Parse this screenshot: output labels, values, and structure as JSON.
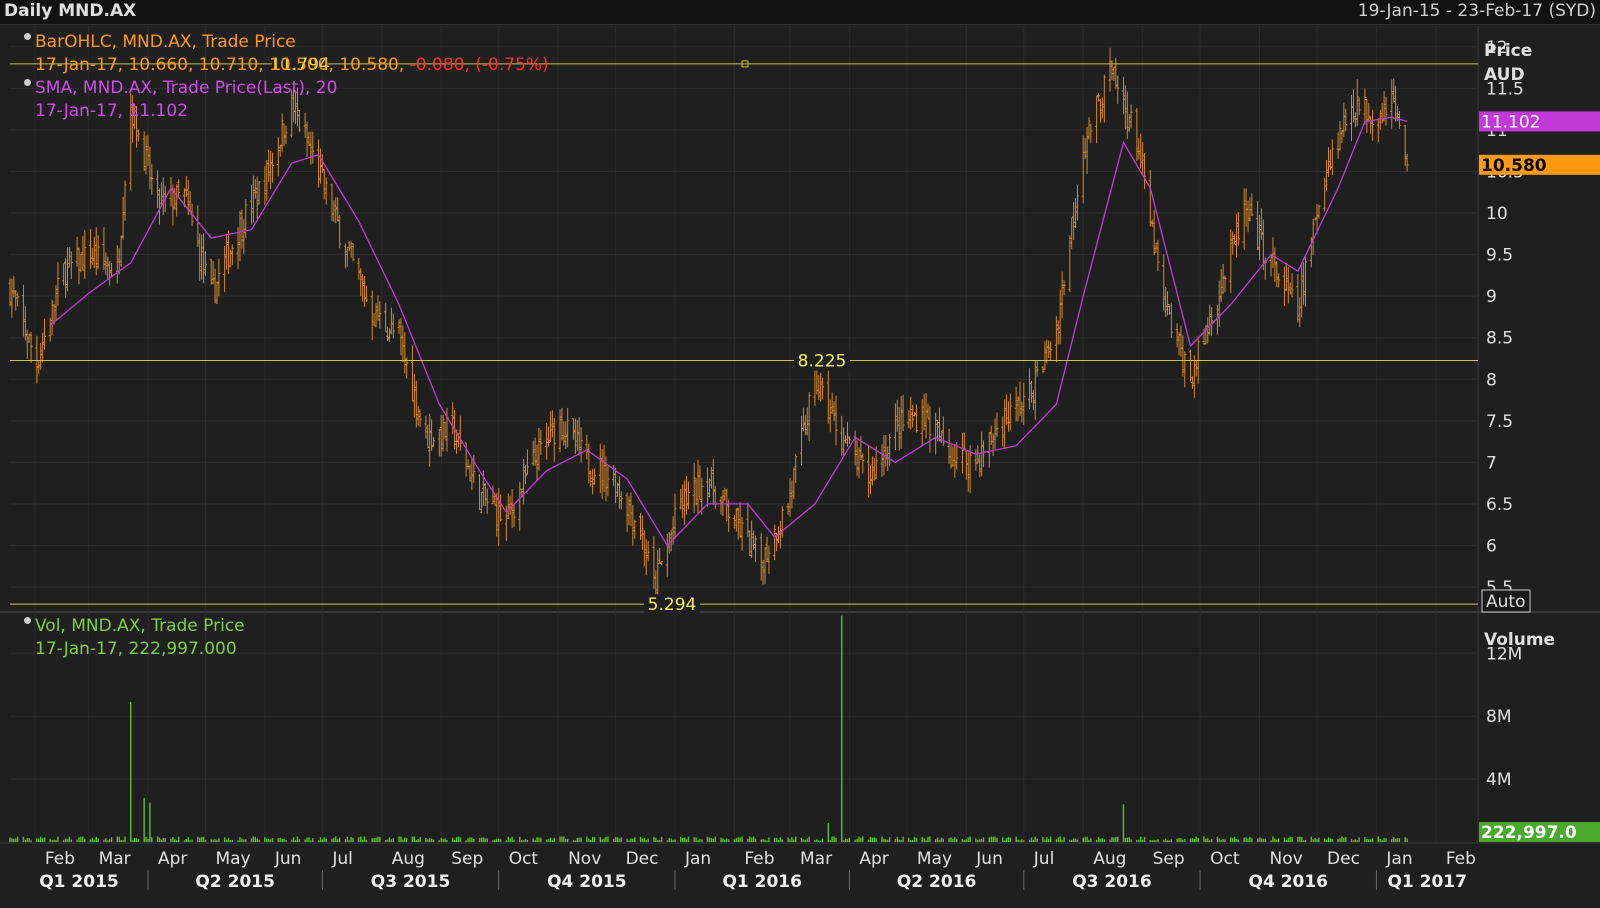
{
  "header": {
    "title": "Daily MND.AX",
    "range": "19-Jan-15 - 23-Feb-17 (SYD)"
  },
  "price_legend": {
    "bar_line1": "BarOHLC, MND.AX, Trade Price",
    "bar_line2_values": "17-Jan-17, 10.660, 10.710, 10.500, 10.580,",
    "bar_line2_change": "-0.080, (-0.75%)",
    "sma_line1": "SMA, MND.AX, Trade Price(Last),  20",
    "sma_line2": "17-Jan-17, 11.102"
  },
  "volume_legend": {
    "line1": "Vol, MND.AX, Trade Price",
    "line2": "17-Jan-17, 222,997.000"
  },
  "price_axis": {
    "label1": "Price",
    "label2": "AUD",
    "ticks": [
      "12",
      "11.5",
      "11",
      "10.5",
      "10",
      "9.5",
      "9",
      "8.5",
      "8",
      "7.5",
      "7",
      "6.5",
      "6",
      "5.5"
    ],
    "auto_label": "Auto",
    "last_sma_tag": "11.102",
    "last_price_tag": "10.580"
  },
  "volume_axis": {
    "label": "Volume",
    "ticks": [
      "12M",
      "8M",
      "4M"
    ],
    "last_volume_tag": "222,997.0"
  },
  "colors": {
    "background": "#1f1f1f",
    "bars": "#d4892a",
    "sma": "#c13ad8",
    "hline": "#c8c832",
    "volume": "#5fbf2a",
    "price_tag": "#ff9a10",
    "sma_tag": "#c13ad8"
  },
  "chart_data": [
    {
      "type": "ohlc",
      "symbol": "MND.AX",
      "currency": "AUD",
      "ylim": [
        5.2,
        12.25
      ],
      "last_bar": {
        "date": "17-Jan-17",
        "open": 10.66,
        "high": 10.71,
        "low": 10.5,
        "close": 10.58,
        "change": -0.08,
        "change_pct": -0.75
      },
      "sma_period": 20,
      "sma_last": 11.102,
      "horizontal_lines": [
        {
          "value": 11.794,
          "label": "11.794"
        },
        {
          "value": 8.225,
          "label": "8.225"
        },
        {
          "value": 5.294,
          "label": "5.294"
        }
      ],
      "close_path": [
        [
          "2015-01-19",
          9.1
        ],
        [
          "2015-02-02",
          8.2
        ],
        [
          "2015-02-16",
          9.3
        ],
        [
          "2015-03-02",
          9.5
        ],
        [
          "2015-03-16",
          9.3
        ],
        [
          "2015-03-23",
          11.3
        ],
        [
          "2015-04-06",
          10.1
        ],
        [
          "2015-04-20",
          10.2
        ],
        [
          "2015-05-04",
          9.0
        ],
        [
          "2015-05-18",
          9.8
        ],
        [
          "2015-06-01",
          10.4
        ],
        [
          "2015-06-15",
          11.3
        ],
        [
          "2015-06-29",
          10.5
        ],
        [
          "2015-07-13",
          9.6
        ],
        [
          "2015-07-27",
          8.8
        ],
        [
          "2015-08-10",
          8.5
        ],
        [
          "2015-08-24",
          7.3
        ],
        [
          "2015-09-07",
          7.4
        ],
        [
          "2015-09-21",
          6.6
        ],
        [
          "2015-10-05",
          6.3
        ],
        [
          "2015-10-19",
          7.0
        ],
        [
          "2015-11-02",
          7.5
        ],
        [
          "2015-11-16",
          7.0
        ],
        [
          "2015-11-30",
          6.8
        ],
        [
          "2015-12-14",
          6.2
        ],
        [
          "2015-12-21",
          5.5
        ],
        [
          "2016-01-04",
          6.5
        ],
        [
          "2016-01-18",
          6.8
        ],
        [
          "2016-02-01",
          6.3
        ],
        [
          "2016-02-15",
          5.8
        ],
        [
          "2016-02-29",
          6.5
        ],
        [
          "2016-03-14",
          8.0
        ],
        [
          "2016-03-28",
          7.3
        ],
        [
          "2016-04-11",
          6.8
        ],
        [
          "2016-04-25",
          7.4
        ],
        [
          "2016-05-09",
          7.6
        ],
        [
          "2016-05-23",
          7.1
        ],
        [
          "2016-06-06",
          7.0
        ],
        [
          "2016-06-20",
          7.5
        ],
        [
          "2016-07-04",
          7.8
        ],
        [
          "2016-07-18",
          8.6
        ],
        [
          "2016-08-01",
          10.8
        ],
        [
          "2016-08-15",
          11.7
        ],
        [
          "2016-08-29",
          10.9
        ],
        [
          "2016-09-12",
          8.9
        ],
        [
          "2016-09-26",
          8.0
        ],
        [
          "2016-10-10",
          9.0
        ],
        [
          "2016-10-24",
          10.0
        ],
        [
          "2016-11-07",
          9.4
        ],
        [
          "2016-11-21",
          8.8
        ],
        [
          "2016-12-05",
          10.5
        ],
        [
          "2016-12-19",
          11.3
        ],
        [
          "2017-01-02",
          11.2
        ],
        [
          "2017-01-09",
          11.4
        ],
        [
          "2017-01-17",
          10.58
        ]
      ],
      "sma_path": [
        [
          "2015-02-09",
          8.65
        ],
        [
          "2015-03-02",
          9.05
        ],
        [
          "2015-03-23",
          9.4
        ],
        [
          "2015-04-13",
          10.3
        ],
        [
          "2015-05-04",
          9.7
        ],
        [
          "2015-05-25",
          9.8
        ],
        [
          "2015-06-15",
          10.6
        ],
        [
          "2015-06-29",
          10.7
        ],
        [
          "2015-07-20",
          9.9
        ],
        [
          "2015-08-10",
          8.9
        ],
        [
          "2015-08-31",
          7.7
        ],
        [
          "2015-09-21",
          6.9
        ],
        [
          "2015-10-05",
          6.4
        ],
        [
          "2015-10-26",
          6.9
        ],
        [
          "2015-11-16",
          7.15
        ],
        [
          "2015-12-07",
          6.8
        ],
        [
          "2015-12-28",
          6.0
        ],
        [
          "2016-01-18",
          6.5
        ],
        [
          "2016-02-08",
          6.5
        ],
        [
          "2016-02-22",
          6.1
        ],
        [
          "2016-03-14",
          6.5
        ],
        [
          "2016-04-04",
          7.3
        ],
        [
          "2016-04-25",
          7.0
        ],
        [
          "2016-05-16",
          7.3
        ],
        [
          "2016-06-06",
          7.1
        ],
        [
          "2016-06-27",
          7.2
        ],
        [
          "2016-07-18",
          7.7
        ],
        [
          "2016-08-01",
          9.0
        ],
        [
          "2016-08-22",
          10.85
        ],
        [
          "2016-09-05",
          10.3
        ],
        [
          "2016-09-26",
          8.4
        ],
        [
          "2016-10-17",
          8.9
        ],
        [
          "2016-11-07",
          9.5
        ],
        [
          "2016-11-21",
          9.3
        ],
        [
          "2016-12-12",
          10.3
        ],
        [
          "2016-12-26",
          11.1
        ],
        [
          "2017-01-09",
          11.15
        ],
        [
          "2017-01-17",
          11.102
        ]
      ]
    },
    {
      "type": "bar",
      "name": "Vol, MND.AX, Trade Price",
      "ylim": [
        0,
        14500000
      ],
      "last_volume": 222997,
      "baseline": 200000,
      "spikes": [
        [
          "2015-03-23",
          8900000
        ],
        [
          "2015-03-30",
          2800000
        ],
        [
          "2015-04-02",
          2500000
        ],
        [
          "2016-03-21",
          1200000
        ],
        [
          "2016-03-28",
          14400000
        ],
        [
          "2016-08-22",
          2400000
        ]
      ]
    }
  ],
  "x_axis": {
    "months": [
      "Feb",
      "Mar",
      "Apr",
      "May",
      "Jun",
      "Jul",
      "Aug",
      "Sep",
      "Oct",
      "Nov",
      "Dec",
      "Jan",
      "Feb",
      "Mar",
      "Apr",
      "May",
      "Jun",
      "Jul",
      "Aug",
      "Sep",
      "Oct",
      "Nov",
      "Dec",
      "Jan",
      "Feb"
    ],
    "quarters": [
      "Q1 2015",
      "Q2 2015",
      "Q3 2015",
      "Q4 2015",
      "Q1 2016",
      "Q2 2016",
      "Q3 2016",
      "Q4 2016",
      "Q1 2017"
    ]
  }
}
